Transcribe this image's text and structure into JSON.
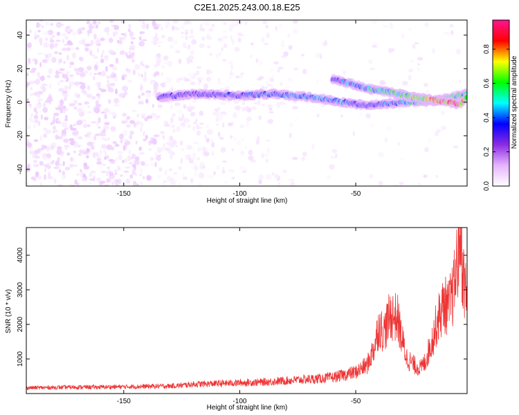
{
  "title": "C2E1.2025.243.00.18.E25",
  "chart_data": [
    {
      "type": "heatmap",
      "title": "C2E1.2025.243.00.18.E25",
      "xlabel": "Height of straight line (km)",
      "ylabel": "Frequency (Hz)",
      "xlim": [
        -192,
        -2
      ],
      "ylim": [
        -50,
        49
      ],
      "xticks": [
        -150,
        -100,
        -50
      ],
      "yticks": [
        -40,
        -20,
        0,
        20,
        40
      ],
      "colorbar": {
        "label": "Normalized spectral amplitude",
        "range": [
          0,
          0.97
        ],
        "ticks": [
          0.0,
          0.2,
          0.4,
          0.6,
          0.8
        ],
        "colors": [
          "#ffffff",
          "#e6b3ff",
          "#8a2be2",
          "#0000ff",
          "#00ffff",
          "#00ff00",
          "#ffff00",
          "#ff0000",
          "#ff1493"
        ]
      },
      "features": [
        {
          "name": "main-track",
          "x": [
            -135,
            -120,
            -100,
            -85,
            -70,
            -55,
            -45,
            -30,
            -15,
            -2
          ],
          "freq": [
            3,
            5,
            4,
            5,
            3,
            0,
            -2,
            0,
            1,
            5
          ],
          "amplitude": [
            0.3,
            0.32,
            0.35,
            0.38,
            0.4,
            0.4,
            0.3,
            0.45,
            0.6,
            0.5
          ]
        },
        {
          "name": "upper-branch",
          "x": [
            -60,
            -52,
            -45,
            -35,
            -25,
            -15,
            -5,
            -2
          ],
          "freq": [
            14,
            11,
            8,
            6,
            3,
            1,
            -1,
            3
          ],
          "amplitude": [
            0.3,
            0.4,
            0.45,
            0.5,
            0.6,
            0.75,
            0.9,
            0.6
          ]
        }
      ]
    },
    {
      "type": "line",
      "xlabel": "Height of straight line (km)",
      "ylabel": "SNR (10 * v/v)",
      "xlim": [
        -192,
        -2
      ],
      "ylim": [
        0,
        4800
      ],
      "xticks": [
        -150,
        -100,
        -50
      ],
      "yticks": [
        1000,
        2000,
        3000,
        4000
      ],
      "color": "#ee3333",
      "series": [
        {
          "name": "SNR",
          "x": [
            -192,
            -180,
            -170,
            -160,
            -150,
            -140,
            -130,
            -125,
            -120,
            -110,
            -100,
            -90,
            -80,
            -75,
            -70,
            -65,
            -60,
            -55,
            -50,
            -45,
            -42,
            -40,
            -38,
            -35,
            -32,
            -30,
            -28,
            -25,
            -22,
            -20,
            -17,
            -15,
            -12,
            -10,
            -8,
            -6,
            -5,
            -4,
            -3,
            -2
          ],
          "y": [
            160,
            170,
            180,
            180,
            190,
            200,
            210,
            230,
            260,
            280,
            300,
            320,
            360,
            380,
            400,
            420,
            450,
            520,
            600,
            800,
            1300,
            1900,
            1700,
            2200,
            2100,
            1500,
            1000,
            800,
            700,
            900,
            1500,
            2000,
            2500,
            2400,
            2800,
            3800,
            4700,
            3500,
            3000,
            2600
          ]
        }
      ]
    }
  ]
}
